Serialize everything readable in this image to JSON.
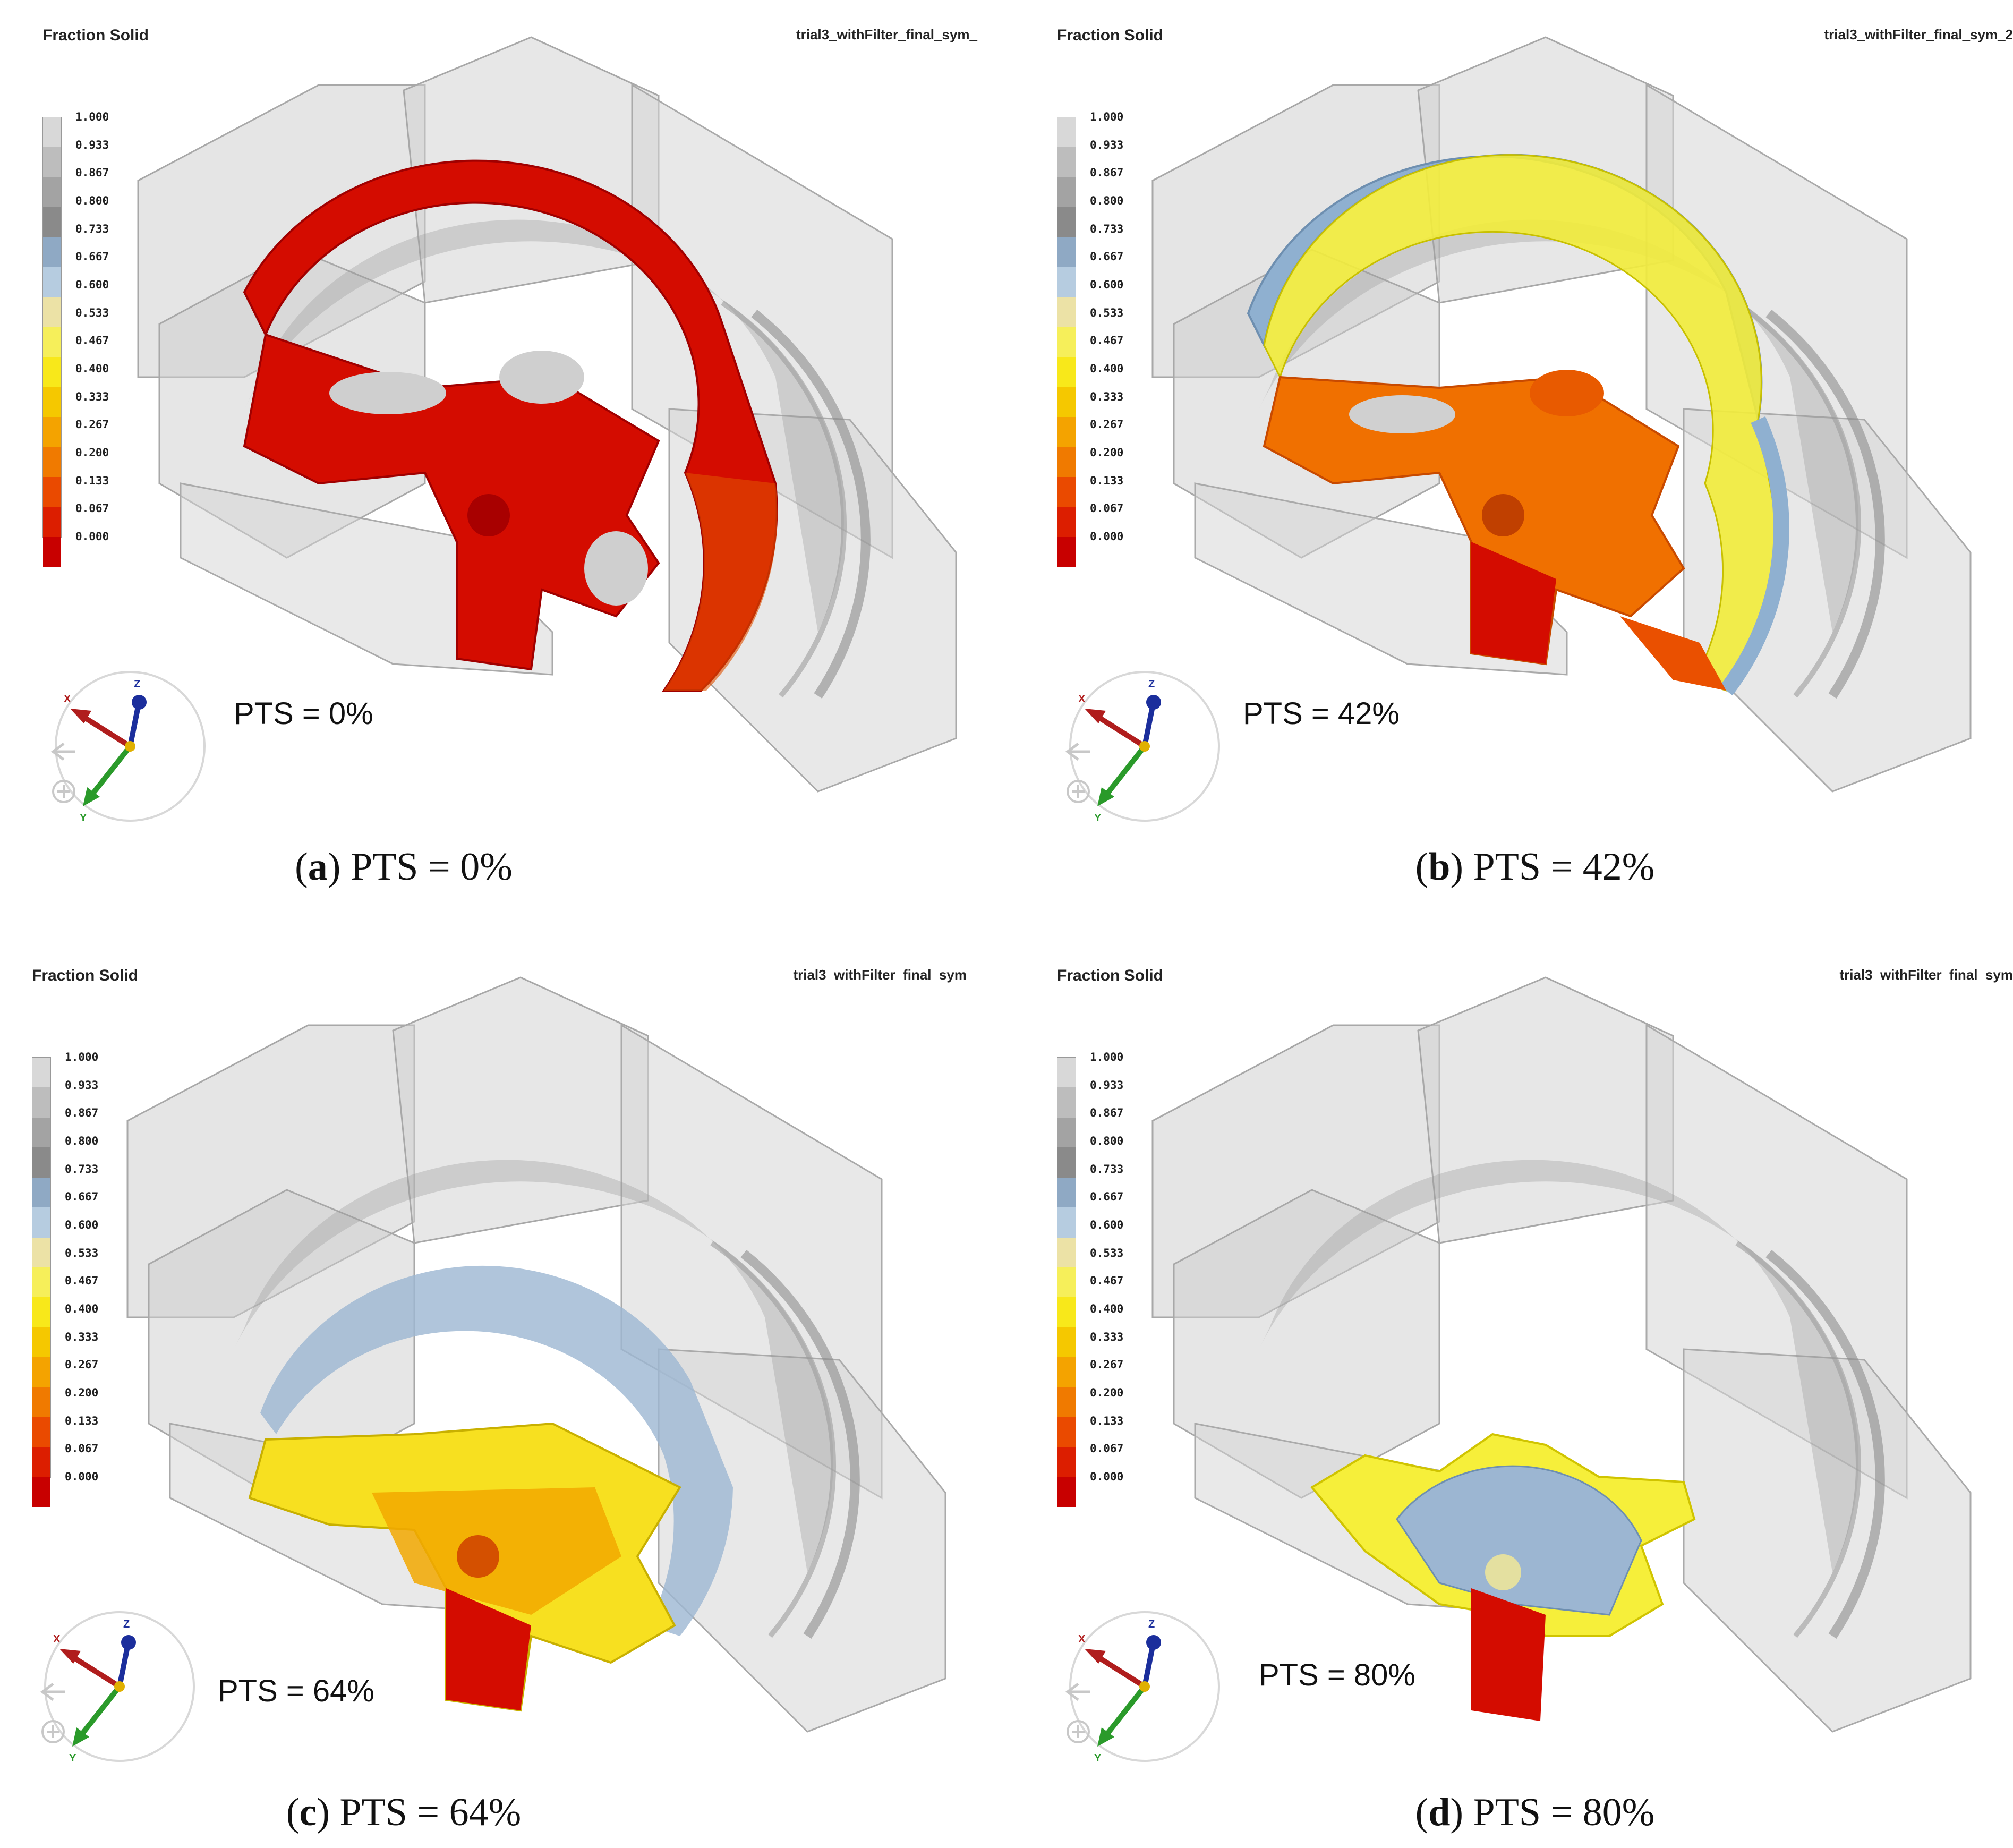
{
  "legend": {
    "ticks": [
      "1.000",
      "0.933",
      "0.867",
      "0.800",
      "0.733",
      "0.667",
      "0.600",
      "0.533",
      "0.467",
      "0.400",
      "0.333",
      "0.267",
      "0.200",
      "0.133",
      "0.067",
      "0.000"
    ],
    "colors": [
      "#d8d8d8",
      "#bdbdbd",
      "#a3a3a3",
      "#8a8a8a",
      "#8fa9c4",
      "#b6cce0",
      "#ece2a6",
      "#f6ef5a",
      "#f8e81a",
      "#f5c800",
      "#f4a300",
      "#f07a00",
      "#ea4a00",
      "#dc1e00",
      "#c80000"
    ]
  },
  "axis_labels": {
    "x": "X",
    "y": "Y",
    "z": "Z"
  },
  "panels": [
    {
      "title": "Fraction  Solid",
      "file": "trial3_withFilter_final_sym_",
      "pts_label": "PTS = 0%",
      "caption_letter": "a",
      "caption_rest": " PTS = 0%"
    },
    {
      "title": "Fraction  Solid",
      "file": "trial3_withFilter_final_sym_2",
      "pts_label": "PTS = 42%",
      "caption_letter": "b",
      "caption_rest": " PTS = 42%"
    },
    {
      "title": "Fraction  Solid",
      "file": "trial3_withFilter_final_sym",
      "pts_label": "PTS = 64%",
      "caption_letter": "c",
      "caption_rest": " PTS = 64%"
    },
    {
      "title": "Fraction  Solid",
      "file": "trial3_withFilter_final_sym",
      "pts_label": "PTS = 80%",
      "caption_letter": "d",
      "caption_rest": " PTS = 80%"
    }
  ]
}
